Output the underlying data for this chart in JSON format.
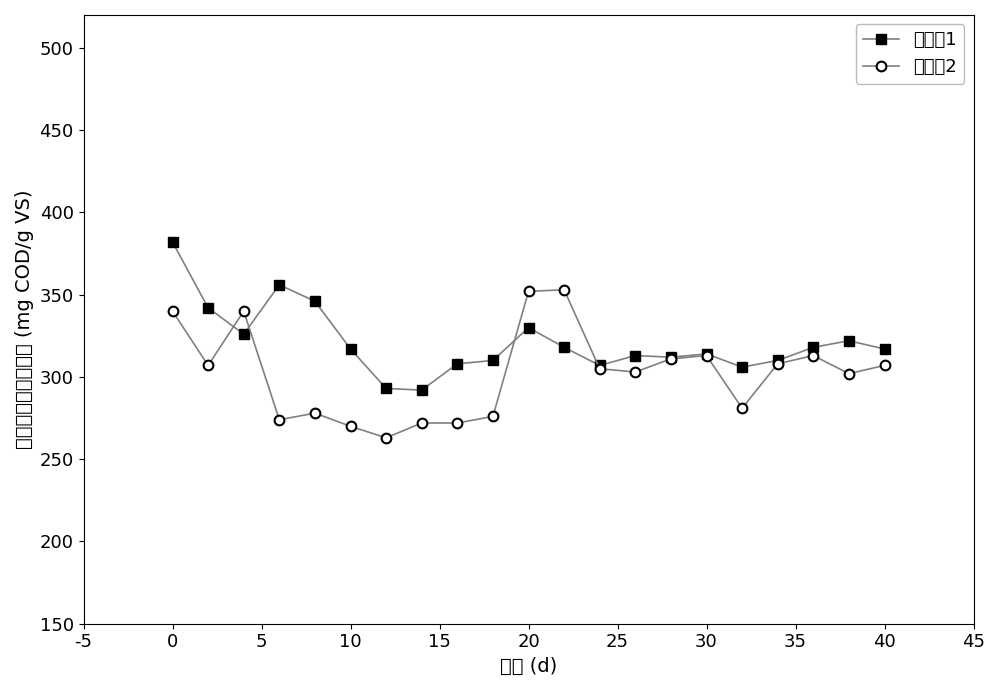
{
  "series1_label": "实施例1",
  "series2_label": "实施例2",
  "series1_x": [
    0,
    2,
    4,
    6,
    8,
    10,
    12,
    14,
    16,
    18,
    20,
    22,
    24,
    26,
    28,
    30,
    32,
    34,
    36,
    38,
    40
  ],
  "series1_y": [
    382,
    342,
    326,
    356,
    346,
    317,
    293,
    292,
    308,
    310,
    330,
    318,
    307,
    313,
    312,
    314,
    306,
    310,
    318,
    322,
    317
  ],
  "series2_x": [
    0,
    2,
    4,
    6,
    8,
    10,
    12,
    14,
    16,
    18,
    20,
    22,
    24,
    26,
    28,
    30,
    32,
    34,
    36,
    38,
    40
  ],
  "series2_y": [
    340,
    307,
    340,
    274,
    278,
    270,
    263,
    272,
    272,
    276,
    352,
    353,
    305,
    303,
    311,
    313,
    281,
    308,
    313,
    302,
    307
  ],
  "xlabel": "时间 (d)",
  "ylabel": "总挥发性脂肪酸产率 (mg COD/g VS)",
  "xlim": [
    -5,
    45
  ],
  "ylim": [
    150,
    520
  ],
  "yticks": [
    150,
    200,
    250,
    300,
    350,
    400,
    450,
    500
  ],
  "xticks": [
    -5,
    0,
    5,
    10,
    15,
    20,
    25,
    30,
    35,
    40,
    45
  ],
  "line_color": "#808080",
  "marker_fill1": "#000000",
  "marker_edge": "#000000",
  "legend_fontsize": 13,
  "axis_fontsize": 14,
  "tick_fontsize": 13,
  "figure_width": 10.0,
  "figure_height": 6.91,
  "dpi": 100
}
